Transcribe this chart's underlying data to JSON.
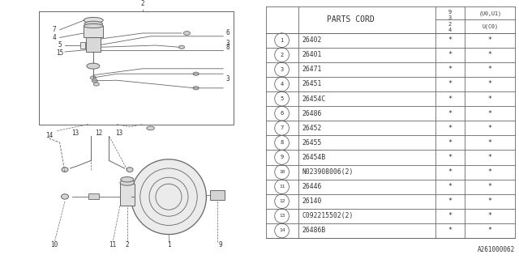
{
  "diagram_code": "A261000062",
  "bg_color": "#ffffff",
  "line_color": "#666666",
  "text_color": "#333333",
  "rows": [
    [
      "1",
      "26402",
      "*",
      "*"
    ],
    [
      "2",
      "26401",
      "*",
      "*"
    ],
    [
      "3",
      "26471",
      "*",
      "*"
    ],
    [
      "4",
      "26451",
      "*",
      "*"
    ],
    [
      "5",
      "26454C",
      "*",
      "*"
    ],
    [
      "6",
      "26486",
      "*",
      "*"
    ],
    [
      "7",
      "26452",
      "*",
      "*"
    ],
    [
      "8",
      "26455",
      "*",
      "*"
    ],
    [
      "9",
      "26454B",
      "*",
      "*"
    ],
    [
      "10",
      "N023908006(2)",
      "*",
      "*"
    ],
    [
      "11",
      "26446",
      "*",
      "*"
    ],
    [
      "12",
      "26140",
      "*",
      "*"
    ],
    [
      "13",
      "C092215502(2)",
      "*",
      "*"
    ],
    [
      "14",
      "26486B",
      "*",
      "*"
    ]
  ]
}
